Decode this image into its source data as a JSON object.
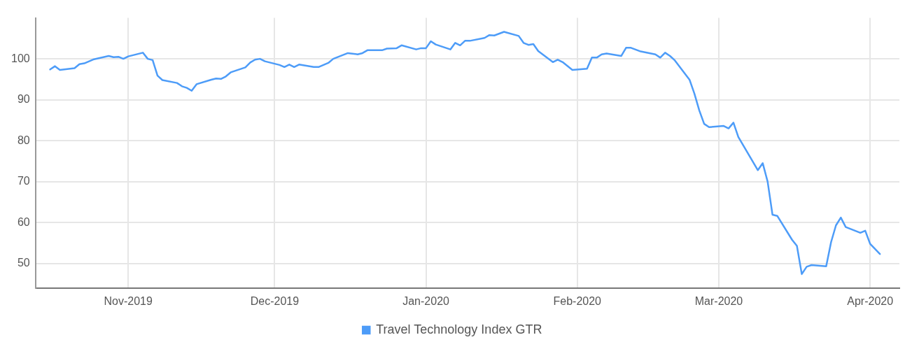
{
  "chart_data": {
    "type": "line",
    "x": [
      "2019-10-16",
      "2019-10-17",
      "2019-10-18",
      "2019-10-21",
      "2019-10-22",
      "2019-10-23",
      "2019-10-25",
      "2019-10-28",
      "2019-10-29",
      "2019-10-30",
      "2019-10-31",
      "2019-11-01",
      "2019-11-04",
      "2019-11-05",
      "2019-11-06",
      "2019-11-07",
      "2019-11-08",
      "2019-11-11",
      "2019-11-12",
      "2019-11-13",
      "2019-11-14",
      "2019-11-15",
      "2019-11-18",
      "2019-11-19",
      "2019-11-20",
      "2019-11-21",
      "2019-11-22",
      "2019-11-25",
      "2019-11-26",
      "2019-11-27",
      "2019-11-28",
      "2019-11-29",
      "2019-12-02",
      "2019-12-03",
      "2019-12-04",
      "2019-12-05",
      "2019-12-06",
      "2019-12-09",
      "2019-12-10",
      "2019-12-12",
      "2019-12-13",
      "2019-12-16",
      "2019-12-18",
      "2019-12-19",
      "2019-12-20",
      "2019-12-23",
      "2019-12-24",
      "2019-12-26",
      "2019-12-27",
      "2019-12-30",
      "2019-12-31",
      "2020-01-01",
      "2020-01-02",
      "2020-01-03",
      "2020-01-06",
      "2020-01-07",
      "2020-01-08",
      "2020-01-09",
      "2020-01-10",
      "2020-01-13",
      "2020-01-14",
      "2020-01-15",
      "2020-01-17",
      "2020-01-20",
      "2020-01-21",
      "2020-01-22",
      "2020-01-23",
      "2020-01-24",
      "2020-01-27",
      "2020-01-28",
      "2020-01-29",
      "2020-01-31",
      "2020-02-03",
      "2020-02-04",
      "2020-02-05",
      "2020-02-06",
      "2020-02-07",
      "2020-02-10",
      "2020-02-11",
      "2020-02-12",
      "2020-02-14",
      "2020-02-17",
      "2020-02-18",
      "2020-02-19",
      "2020-02-20",
      "2020-02-21",
      "2020-02-24",
      "2020-02-25",
      "2020-02-26",
      "2020-02-27",
      "2020-02-28",
      "2020-03-02",
      "2020-03-03",
      "2020-03-04",
      "2020-03-05",
      "2020-03-09",
      "2020-03-10",
      "2020-03-11",
      "2020-03-12",
      "2020-03-13",
      "2020-03-16",
      "2020-03-17",
      "2020-03-18",
      "2020-03-19",
      "2020-03-20",
      "2020-03-23",
      "2020-03-24",
      "2020-03-25",
      "2020-03-26",
      "2020-03-27",
      "2020-03-30",
      "2020-03-31",
      "2020-04-01",
      "2020-04-03"
    ],
    "series": [
      {
        "name": "Travel Technology Index GTR",
        "color": "#4d9cf8",
        "values": [
          97.4,
          98.2,
          97.3,
          97.7,
          98.7,
          98.9,
          99.9,
          100.7,
          100.4,
          100.5,
          100.0,
          100.6,
          101.5,
          100.0,
          99.7,
          95.9,
          94.8,
          94.1,
          93.3,
          92.9,
          92.2,
          93.8,
          94.9,
          95.2,
          95.1,
          95.7,
          96.7,
          97.9,
          99.1,
          99.8,
          100.0,
          99.4,
          98.5,
          98.0,
          98.6,
          98.0,
          98.6,
          98.0,
          98.0,
          99.0,
          100.0,
          101.4,
          101.1,
          101.4,
          102.1,
          102.1,
          102.5,
          102.6,
          103.3,
          102.3,
          102.6,
          102.6,
          104.3,
          103.5,
          102.3,
          103.9,
          103.3,
          104.4,
          104.4,
          105.1,
          105.8,
          105.7,
          106.6,
          105.6,
          103.9,
          103.4,
          103.6,
          101.9,
          99.2,
          99.8,
          99.2,
          97.3,
          97.6,
          100.3,
          100.3,
          101.1,
          101.3,
          100.7,
          102.7,
          102.7,
          101.8,
          101.1,
          100.3,
          101.5,
          100.7,
          99.6,
          94.9,
          91.5,
          87.4,
          84.1,
          83.3,
          83.6,
          83.0,
          84.4,
          80.9,
          72.8,
          74.5,
          70.0,
          61.9,
          61.6,
          55.8,
          54.3,
          47.4,
          49.2,
          49.6,
          49.3,
          55.2,
          59.3,
          61.2,
          58.9,
          57.5,
          58.0,
          54.8,
          52.3
        ]
      }
    ],
    "xlim": [
      "2019-10-13",
      "2020-04-07"
    ],
    "xticks": [
      {
        "value": "2019-11-01",
        "label": "Nov-2019"
      },
      {
        "value": "2019-12-01",
        "label": "Dec-2019"
      },
      {
        "value": "2020-01-01",
        "label": "Jan-2020"
      },
      {
        "value": "2020-02-01",
        "label": "Feb-2020"
      },
      {
        "value": "2020-03-01",
        "label": "Mar-2020"
      },
      {
        "value": "2020-04-01",
        "label": "Apr-2020"
      }
    ],
    "ylim": [
      44,
      110
    ],
    "yticks": [
      50,
      60,
      70,
      80,
      90,
      100
    ],
    "grid": true,
    "legend": "bottom",
    "marker": "none",
    "line_style": "solid"
  }
}
